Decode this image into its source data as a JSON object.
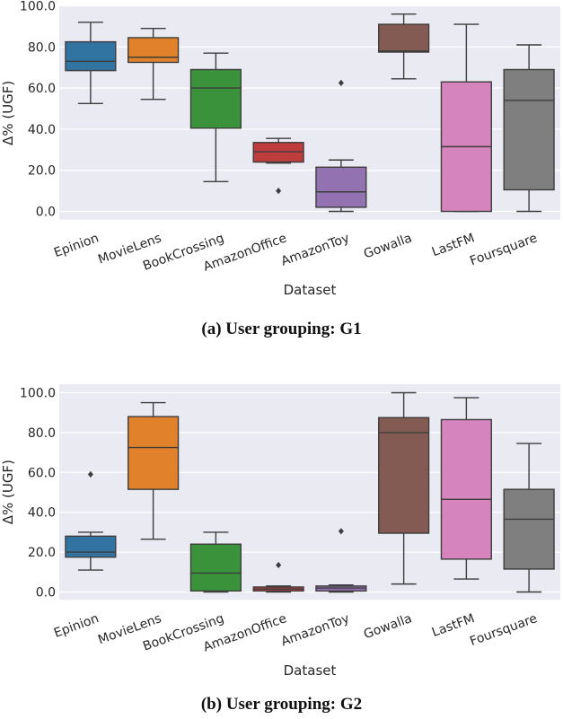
{
  "chart_data": [
    {
      "type": "box",
      "caption": "(a) User grouping: G1",
      "xlabel": "Dataset",
      "ylabel": "Δ% (UGF)",
      "ylim": [
        -4,
        100
      ],
      "yticks": [
        "0.0",
        "20.0",
        "40.0",
        "60.0",
        "80.0",
        "100.0"
      ],
      "ytick_values": [
        0,
        20,
        40,
        60,
        80,
        100
      ],
      "categories": [
        "Epinion",
        "MovieLens",
        "BookCrossing",
        "AmazonOffice",
        "AmazonToy",
        "Gowalla",
        "LastFM",
        "Foursquare"
      ],
      "boxes": [
        {
          "min": 52.5,
          "q1": 68.5,
          "median": 73.0,
          "q3": 82.5,
          "max": 92.0,
          "outliers": []
        },
        {
          "min": 54.5,
          "q1": 72.5,
          "median": 75.0,
          "q3": 84.5,
          "max": 89.0,
          "outliers": []
        },
        {
          "min": 14.5,
          "q1": 40.5,
          "median": 60.0,
          "q3": 69.0,
          "max": 77.0,
          "outliers": []
        },
        {
          "min": 23.5,
          "q1": 24.0,
          "median": 29.0,
          "q3": 33.5,
          "max": 35.5,
          "outliers": [
            10.0
          ]
        },
        {
          "min": 0.0,
          "q1": 2.0,
          "median": 9.5,
          "q3": 21.5,
          "max": 25.0,
          "outliers": [
            62.5
          ]
        },
        {
          "min": 64.5,
          "q1": 77.5,
          "median": 78.0,
          "q3": 91.0,
          "max": 96.0,
          "outliers": []
        },
        {
          "min": 0.0,
          "q1": 0.0,
          "median": 31.5,
          "q3": 63.0,
          "max": 91.0,
          "outliers": []
        },
        {
          "min": 0.0,
          "q1": 10.5,
          "median": 54.0,
          "q3": 69.0,
          "max": 81.0,
          "outliers": []
        }
      ],
      "colors": [
        "#3274a1",
        "#e1812c",
        "#3a923a",
        "#c03d3e",
        "#9372b2",
        "#845b53",
        "#d684bd",
        "#7f7f7f"
      ]
    },
    {
      "type": "box",
      "caption": "(b) User grouping: G2",
      "xlabel": "Dataset",
      "ylabel": "Δ% (UGF)",
      "ylim": [
        -4,
        102
      ],
      "yticks": [
        "0.0",
        "20.0",
        "40.0",
        "60.0",
        "80.0",
        "100.0"
      ],
      "ytick_values": [
        0,
        20,
        40,
        60,
        80,
        100
      ],
      "categories": [
        "Epinion",
        "MovieLens",
        "BookCrossing",
        "AmazonOffice",
        "AmazonToy",
        "Gowalla",
        "LastFM",
        "Foursquare"
      ],
      "boxes": [
        {
          "min": 11.0,
          "q1": 17.5,
          "median": 20.0,
          "q3": 28.0,
          "max": 30.0,
          "outliers": [
            59.0
          ]
        },
        {
          "min": 26.5,
          "q1": 51.5,
          "median": 72.5,
          "q3": 88.0,
          "max": 95.0,
          "outliers": []
        },
        {
          "min": 0.0,
          "q1": 0.5,
          "median": 9.5,
          "q3": 24.0,
          "max": 30.0,
          "outliers": []
        },
        {
          "min": 0.0,
          "q1": 0.5,
          "median": 1.5,
          "q3": 2.5,
          "max": 3.0,
          "outliers": [
            13.5
          ]
        },
        {
          "min": 0.0,
          "q1": 0.5,
          "median": 2.0,
          "q3": 3.0,
          "max": 3.5,
          "outliers": [
            30.5
          ]
        },
        {
          "min": 4.0,
          "q1": 29.5,
          "median": 80.0,
          "q3": 87.5,
          "max": 100.0,
          "outliers": []
        },
        {
          "min": 6.5,
          "q1": 16.5,
          "median": 46.5,
          "q3": 86.5,
          "max": 97.5,
          "outliers": []
        },
        {
          "min": 0.0,
          "q1": 11.5,
          "median": 36.5,
          "q3": 51.5,
          "max": 74.5,
          "outliers": []
        }
      ],
      "colors": [
        "#3274a1",
        "#e1812c",
        "#3a923a",
        "#c03d3e",
        "#9372b2",
        "#845b53",
        "#d684bd",
        "#7f7f7f"
      ]
    }
  ]
}
